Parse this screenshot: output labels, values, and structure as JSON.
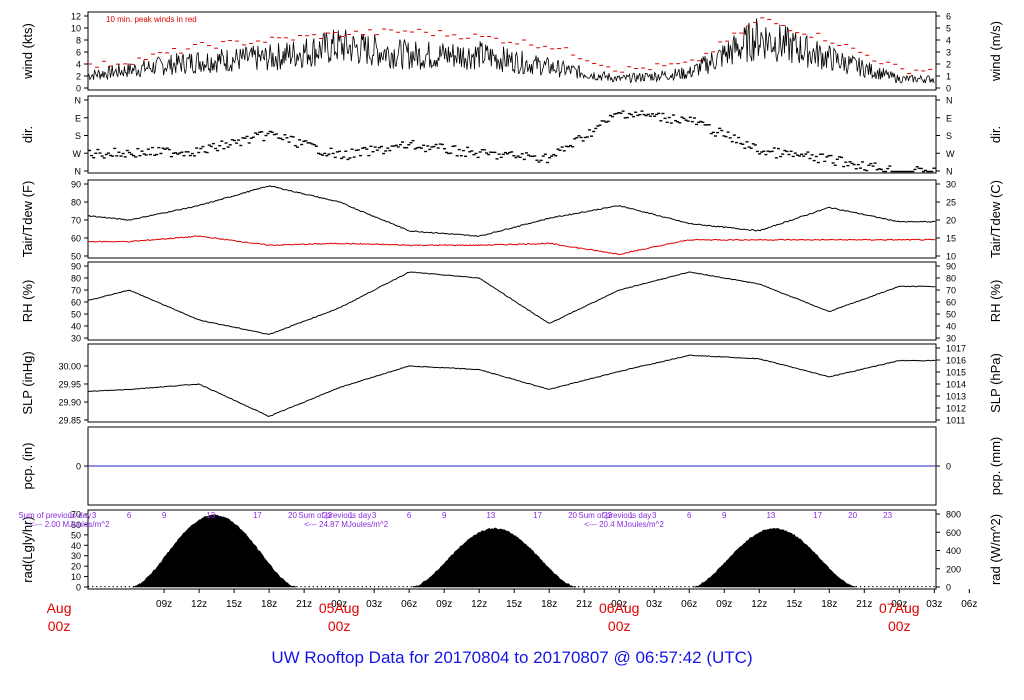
{
  "figure": {
    "title": "UW Rooftop Data for 20170804  to  20170807 @ 06:57:42  (UTC)"
  },
  "chart_data": [
    {
      "type": "line",
      "panel": "wind",
      "ylabel_left": "wind (kts)",
      "ylabel_right": "wind (m/s)",
      "annotation": "10 min. peak winds in red",
      "ylim": [
        0,
        12
      ],
      "yticks_left": [
        "0",
        "2",
        "4",
        "6",
        "8",
        "10",
        "12"
      ],
      "yticks_right": [
        "0",
        "1",
        "2",
        "3",
        "4",
        "5",
        "6"
      ],
      "series": [
        {
          "name": "wind speed",
          "color": "#000000",
          "x": [
            0,
            6,
            12,
            18,
            24,
            30,
            36,
            42,
            48,
            54,
            60,
            66,
            72
          ],
          "values": [
            1.5,
            3,
            4.5,
            5,
            7,
            5.5,
            5.5,
            3.5,
            1.5,
            2.5,
            8.5,
            5,
            1.5
          ]
        },
        {
          "name": "10 min. peak winds",
          "color": "#e00000",
          "x": [
            0,
            6,
            12,
            18,
            24,
            30,
            36,
            42,
            48,
            54,
            60,
            66,
            72
          ],
          "values": [
            3,
            4.5,
            7,
            8,
            9,
            9.5,
            8.5,
            7,
            3,
            4,
            11.5,
            8,
            3
          ]
        }
      ]
    },
    {
      "type": "scatter",
      "panel": "dir",
      "ylabel_left": "dir.",
      "ylabel_right": "dir.",
      "yticks_left": [
        "N",
        "W",
        "S",
        "E",
        "N"
      ],
      "yticks_right": [
        "N",
        "W",
        "S",
        "E",
        "N"
      ],
      "series": [
        {
          "name": "wind direction",
          "color": "#000000",
          "x": [
            0,
            6,
            12,
            18,
            24,
            30,
            36,
            42,
            48,
            54,
            60,
            66,
            72
          ],
          "values": [
            270,
            265,
            255,
            170,
            280,
            225,
            270,
            290,
            60,
            100,
            255,
            300,
            360
          ]
        }
      ]
    },
    {
      "type": "line",
      "panel": "temperature",
      "ylabel_left": "Tair/Tdew (F)",
      "ylabel_right": "Tair/Tdew (C)",
      "ylim": [
        50,
        90
      ],
      "yticks_left": [
        "50",
        "60",
        "70",
        "80",
        "90"
      ],
      "yticks_right": [
        "10",
        "15",
        "20",
        "25",
        "30"
      ],
      "series": [
        {
          "name": "Tair",
          "color": "#000000",
          "x": [
            0,
            6,
            12,
            18,
            24,
            30,
            36,
            42,
            48,
            54,
            60,
            66,
            72
          ],
          "values": [
            74,
            70,
            78,
            89,
            80,
            64,
            61,
            71,
            78,
            68,
            64,
            77,
            69
          ]
        },
        {
          "name": "Tdew",
          "color": "#e00000",
          "x": [
            0,
            6,
            12,
            18,
            24,
            30,
            36,
            42,
            48,
            54,
            60,
            66,
            72
          ],
          "values": [
            58,
            58,
            61,
            56,
            57,
            56,
            56,
            57,
            51,
            59,
            59,
            59,
            59
          ]
        }
      ]
    },
    {
      "type": "line",
      "panel": "rh",
      "ylabel_left": "RH (%)",
      "ylabel_right": "RH (%)",
      "ylim": [
        30,
        90
      ],
      "yticks_left": [
        "30",
        "40",
        "50",
        "60",
        "70",
        "80",
        "90"
      ],
      "yticks_right": [
        "30",
        "40",
        "50",
        "60",
        "70",
        "80",
        "90"
      ],
      "series": [
        {
          "name": "RH",
          "color": "#000000",
          "x": [
            0,
            6,
            12,
            18,
            24,
            30,
            36,
            42,
            48,
            54,
            60,
            66,
            72
          ],
          "values": [
            55,
            70,
            45,
            33,
            55,
            85,
            80,
            42,
            70,
            85,
            75,
            52,
            73
          ]
        }
      ]
    },
    {
      "type": "line",
      "panel": "slp",
      "ylabel_left": "SLP (inHg)",
      "ylabel_right": "SLP (hPa)",
      "ylim": [
        29.85,
        30.05
      ],
      "yticks_left": [
        "29.85",
        "29.90",
        "29.95",
        "30.00"
      ],
      "yticks_right": [
        "1011",
        "1012",
        "1013",
        "1014",
        "1015",
        "1016",
        "1017"
      ],
      "series": [
        {
          "name": "SLP",
          "color": "#000000",
          "x": [
            0,
            6,
            12,
            18,
            24,
            30,
            36,
            42,
            48,
            54,
            60,
            66,
            72
          ],
          "values": [
            29.925,
            29.935,
            29.95,
            29.86,
            29.94,
            30.0,
            29.99,
            29.935,
            29.985,
            30.03,
            30.02,
            29.97,
            30.015
          ]
        }
      ]
    },
    {
      "type": "line",
      "panel": "pcp",
      "ylabel_left": "pcp. (in)",
      "ylabel_right": "pcp. (mm)",
      "yticks_left": [
        "0"
      ],
      "yticks_right": [
        "0"
      ],
      "series": [
        {
          "name": "precipitation",
          "color": "#2020d0",
          "x": [
            0,
            72
          ],
          "values": [
            0,
            0
          ]
        }
      ]
    },
    {
      "type": "area",
      "panel": "rad",
      "ylabel_left": "rad(Lgly/hr)",
      "ylabel_right": "rad (W/m^2)",
      "ylim": [
        0,
        70
      ],
      "yticks_left": [
        "0",
        "10",
        "20",
        "30",
        "40",
        "50",
        "60",
        "70"
      ],
      "yticks_right": [
        "0",
        "200",
        "400",
        "600",
        "800"
      ],
      "series": [
        {
          "name": "solar radiation",
          "color": "#000000",
          "peaks": [
            {
              "x": 13.3,
              "value": 69
            },
            {
              "x": 37.3,
              "value": 56
            },
            {
              "x": 61.3,
              "value": 56
            }
          ]
        }
      ],
      "annotations": [
        {
          "text": "Sum of previous day",
          "color": "#8a2be2",
          "x": -3.5
        },
        {
          "text": "<--- 2.00 MJoules/m^2",
          "color": "#8a2be2",
          "x": -2.5
        },
        {
          "text": "Sum of previous day",
          "color": "#8a2be2",
          "x": 20.5
        },
        {
          "text": "<--- 24.87 MJoules/m^2",
          "color": "#8a2be2",
          "x": 21.0
        },
        {
          "text": "Sum of previous day",
          "color": "#8a2be2",
          "x": 44.5
        },
        {
          "text": "<--- 20.4 MJoules/m^2",
          "color": "#8a2be2",
          "x": 45.0
        }
      ],
      "hour_marks": [
        "1",
        "3",
        "6",
        "9",
        "13",
        "17",
        "20",
        "23"
      ]
    }
  ],
  "x_axis": {
    "hour_ticks": [
      "09z",
      "12z",
      "15z",
      "18z",
      "21z",
      "00z",
      "03z",
      "06z",
      "09z",
      "12z",
      "15z",
      "18z",
      "21z",
      "00z",
      "03z",
      "06z",
      "09z",
      "12z",
      "15z",
      "18z",
      "21z",
      "00z",
      "03z",
      "06z"
    ],
    "date_labels": [
      {
        "date": "Aug",
        "hour": "00z"
      },
      {
        "date": "05Aug",
        "hour": "00z"
      },
      {
        "date": "06Aug",
        "hour": "00z"
      },
      {
        "date": "07Aug",
        "hour": "00z"
      }
    ]
  }
}
